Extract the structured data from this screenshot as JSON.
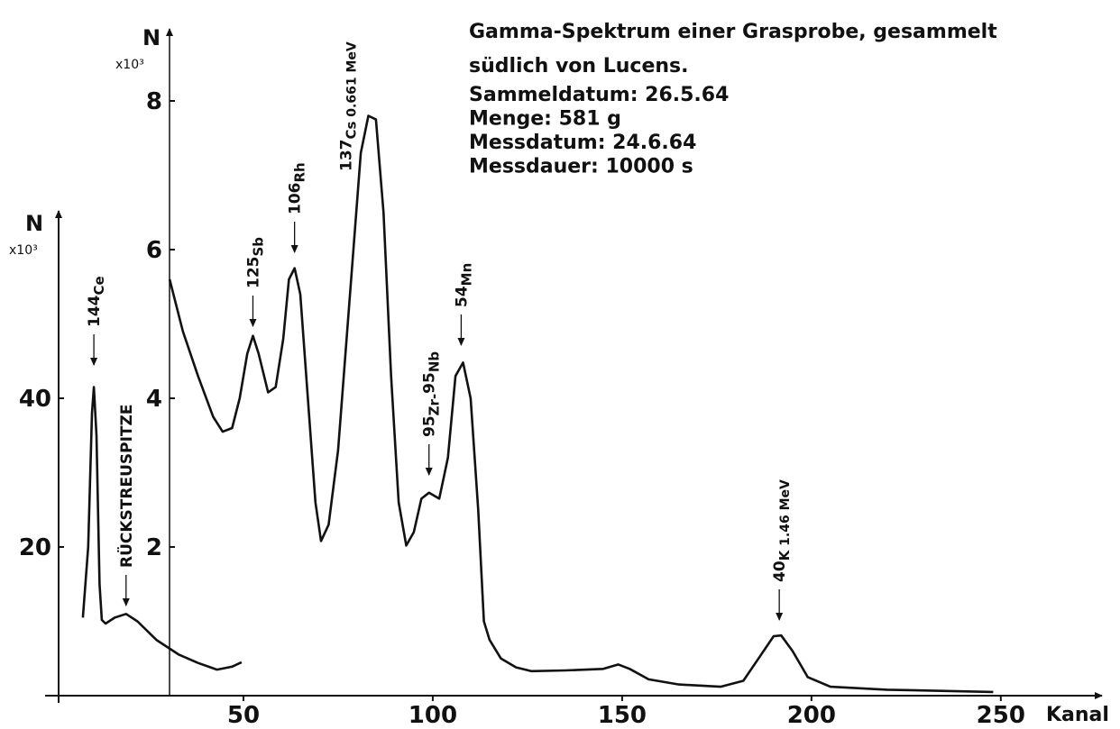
{
  "chart_data": {
    "type": "line",
    "title": "Gamma-Spektrum einer Grasprobe, gesammelt",
    "subtitle": " südlich von Lucens.",
    "info": [
      "Sammeldatum: 26.5.64",
      "Menge: 581 g",
      "Messdatum: 24.6.64",
      "Messdauer: 10000 s"
    ],
    "x_label": "Kanal",
    "y_label": "N",
    "y_unit": "x10³",
    "y2_label": "N",
    "y2_unit": "x10³",
    "xlim": [
      0,
      276
    ],
    "xticks": [
      50,
      100,
      150,
      200,
      250
    ],
    "ylim": [
      0,
      90
    ],
    "yticks": [
      20,
      40
    ],
    "y2lim": [
      0,
      9
    ],
    "y2ticks": [
      2,
      4,
      6,
      8
    ],
    "color": "#111111",
    "series": [
      {
        "axis": "y",
        "x": [
          7.6,
          9,
          10,
          10.5,
          11.2,
          12,
          12.6,
          13.6,
          16,
          19,
          22,
          27,
          33,
          38,
          43,
          47,
          49.5
        ],
        "values": [
          10.5,
          20,
          38,
          41.5,
          35,
          15,
          10.2,
          9.7,
          10.5,
          11,
          10,
          7.5,
          5.5,
          4.4,
          3.5,
          3.9,
          4.5
        ]
      },
      {
        "axis": "y2",
        "x": [
          30.5,
          34,
          38,
          42,
          44.5,
          47,
          49,
          51,
          52.5,
          54,
          56.5,
          58.5,
          60.5,
          62,
          63.5,
          65,
          67,
          69,
          70.5,
          72.5,
          75,
          78,
          81,
          83,
          85,
          87,
          89,
          91,
          93,
          95,
          97,
          99,
          101.7,
          104,
          106,
          108,
          110,
          112,
          113.5,
          115,
          118,
          122,
          126,
          135,
          145,
          149,
          152,
          157,
          165,
          176,
          182,
          186,
          190,
          192,
          195,
          199,
          205,
          220,
          248
        ],
        "values": [
          5.6,
          4.9,
          4.3,
          3.75,
          3.55,
          3.6,
          4.0,
          4.6,
          4.84,
          4.6,
          4.08,
          4.15,
          4.8,
          5.6,
          5.75,
          5.4,
          4.0,
          2.6,
          2.08,
          2.3,
          3.3,
          5.3,
          7.3,
          7.8,
          7.75,
          6.5,
          4.3,
          2.6,
          2.02,
          2.2,
          2.65,
          2.73,
          2.65,
          3.2,
          4.3,
          4.48,
          4.0,
          2.5,
          1.0,
          0.75,
          0.5,
          0.38,
          0.33,
          0.34,
          0.36,
          0.42,
          0.36,
          0.22,
          0.15,
          0.12,
          0.2,
          0.5,
          0.8,
          0.81,
          0.6,
          0.25,
          0.12,
          0.08,
          0.05
        ]
      }
    ],
    "annotations": [
      {
        "x": 10.5,
        "parts": [
          {
            "text": "144",
            "style": "normal"
          },
          {
            "text": "Ce",
            "style": "sub"
          }
        ]
      },
      {
        "x": 19,
        "parts": [
          {
            "text": "RÜCKSTREUSPITZE",
            "style": "normal"
          }
        ]
      },
      {
        "x": 52.5,
        "parts": [
          {
            "text": "125",
            "style": "normal"
          },
          {
            "text": "Sb",
            "style": "sub"
          }
        ]
      },
      {
        "x": 63.5,
        "parts": [
          {
            "text": "106",
            "style": "normal"
          },
          {
            "text": "Rh",
            "style": "sub"
          }
        ]
      },
      {
        "x": 77,
        "parts": [
          {
            "text": "137",
            "style": "normal"
          },
          {
            "text": "Cs",
            "style": "sub"
          },
          {
            "text": " 0.661 MeV",
            "style": "small"
          }
        ]
      },
      {
        "x": 99,
        "parts": [
          {
            "text": "95",
            "style": "normal"
          },
          {
            "text": "Zr-",
            "style": "sub"
          },
          {
            "text": "95",
            "style": "normal"
          },
          {
            "text": "Nb",
            "style": "sub"
          }
        ]
      },
      {
        "x": 107.5,
        "parts": [
          {
            "text": "54",
            "style": "normal"
          },
          {
            "text": "Mn",
            "style": "sub"
          }
        ]
      },
      {
        "x": 191.5,
        "parts": [
          {
            "text": "40",
            "style": "normal"
          },
          {
            "text": "K",
            "style": "sub"
          },
          {
            "text": " 1.46 MeV",
            "style": "small"
          }
        ]
      }
    ]
  }
}
